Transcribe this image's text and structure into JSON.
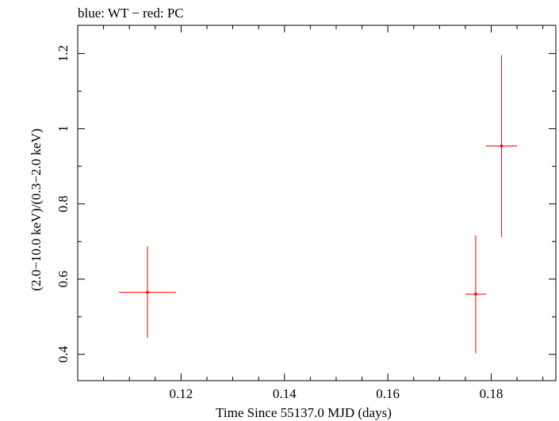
{
  "chart_data": {
    "type": "scatter",
    "title": "blue: WT − red: PC",
    "xlabel": "Time Since 55137.0 MJD (days)",
    "ylabel": "(2.0−10.0 keV)/(0.3−2.0 keV)",
    "xlim": [
      0.1,
      0.1925
    ],
    "ylim": [
      0.33,
      1.275
    ],
    "x_major_ticks": [
      0.12,
      0.14,
      0.16,
      0.18
    ],
    "x_tick_labels": [
      "0.12",
      "0.14",
      "0.16",
      "0.18"
    ],
    "x_minor_ticks": [
      0.105,
      0.11,
      0.115,
      0.125,
      0.13,
      0.135,
      0.145,
      0.15,
      0.155,
      0.165,
      0.17,
      0.175,
      0.185,
      0.19
    ],
    "y_major_ticks": [
      0.4,
      0.6,
      0.8,
      1.0,
      1.2
    ],
    "y_tick_labels": [
      "0.4",
      "0.6",
      "0.8",
      "1",
      "1.2"
    ],
    "y_minor_ticks": [
      0.5,
      0.7,
      0.9,
      1.1
    ],
    "grid": false,
    "series": [
      {
        "name": "PC",
        "color": "#ff0000",
        "points": [
          {
            "x": 0.1135,
            "xerr_lo": 0.0055,
            "xerr_hi": 0.0055,
            "y": 0.565,
            "yerr_lo": 0.122,
            "yerr_hi": 0.122
          },
          {
            "x": 0.177,
            "xerr_lo": 0.002,
            "xerr_hi": 0.002,
            "y": 0.56,
            "yerr_lo": 0.157,
            "yerr_hi": 0.157
          },
          {
            "x": 0.182,
            "xerr_lo": 0.003,
            "xerr_hi": 0.003,
            "y": 0.954,
            "yerr_lo": 0.242,
            "yerr_hi": 0.242
          }
        ]
      },
      {
        "name": "WT",
        "color": "#0000ff",
        "points": []
      }
    ]
  }
}
